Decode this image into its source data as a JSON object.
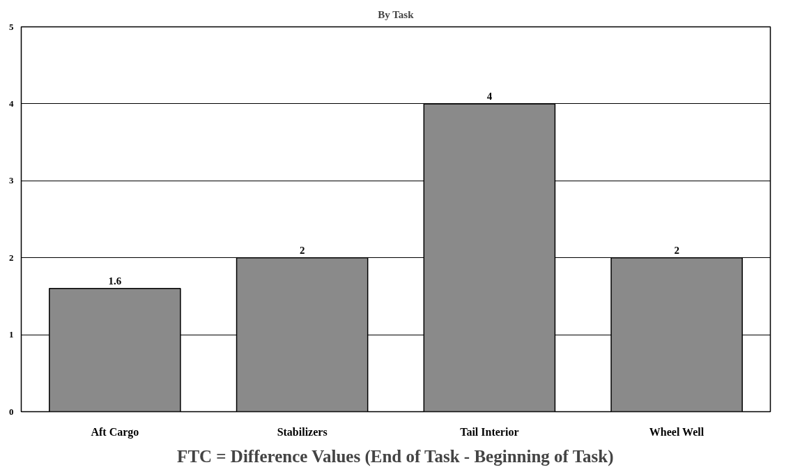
{
  "chart_data": {
    "type": "bar",
    "title": "By Task",
    "xlabel": "FTC = Difference Values (End of Task - Beginning of Task)",
    "categories": [
      "Aft Cargo",
      "Stabilizers",
      "Tail Interior",
      "Wheel Well"
    ],
    "values": [
      1.6,
      2,
      4,
      2
    ],
    "color": "#8a8a8a",
    "ylim": [
      0,
      5
    ],
    "yticks": [
      0,
      1,
      2,
      3,
      4,
      5
    ],
    "grid": "y",
    "data_labels": true
  }
}
